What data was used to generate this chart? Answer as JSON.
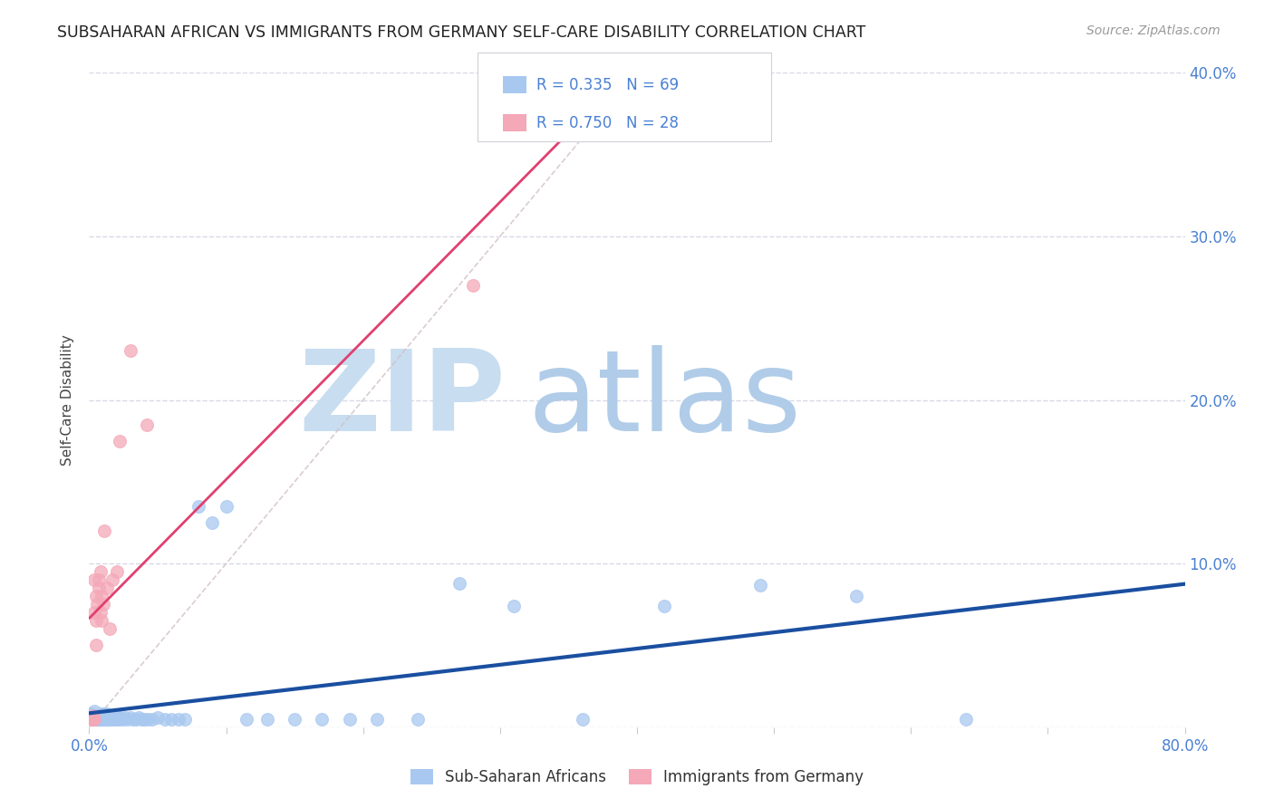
{
  "title": "SUBSAHARAN AFRICAN VS IMMIGRANTS FROM GERMANY SELF-CARE DISABILITY CORRELATION CHART",
  "source": "Source: ZipAtlas.com",
  "ylabel": "Self-Care Disability",
  "xlim": [
    0.0,
    0.8
  ],
  "ylim": [
    0.0,
    0.4
  ],
  "xticks": [
    0.0,
    0.1,
    0.2,
    0.3,
    0.4,
    0.5,
    0.6,
    0.7,
    0.8
  ],
  "yticks": [
    0.0,
    0.1,
    0.2,
    0.3,
    0.4
  ],
  "blue_R": 0.335,
  "blue_N": 69,
  "pink_R": 0.75,
  "pink_N": 28,
  "blue_color": "#a8c8f0",
  "pink_color": "#f4a8b8",
  "blue_line_color": "#1a4fa0",
  "pink_line_color": "#e04070",
  "diagonal_color": "#d0c0c8",
  "background_color": "#ffffff",
  "grid_color": "#d8d8e8",
  "watermark_zip_color": "#c8ddf0",
  "watermark_atlas_color": "#b0cce8",
  "legend_border_color": "#d0d0d8",
  "tick_color": "#4a80d4",
  "blue_scatter_x": [
    0.002,
    0.003,
    0.003,
    0.004,
    0.004,
    0.005,
    0.005,
    0.005,
    0.006,
    0.006,
    0.007,
    0.007,
    0.008,
    0.008,
    0.009,
    0.009,
    0.01,
    0.01,
    0.01,
    0.011,
    0.011,
    0.012,
    0.012,
    0.013,
    0.013,
    0.014,
    0.015,
    0.015,
    0.016,
    0.017,
    0.018,
    0.019,
    0.02,
    0.021,
    0.022,
    0.023,
    0.025,
    0.026,
    0.028,
    0.03,
    0.032,
    0.034,
    0.036,
    0.038,
    0.04,
    0.043,
    0.046,
    0.05,
    0.055,
    0.06,
    0.065,
    0.07,
    0.08,
    0.09,
    0.1,
    0.115,
    0.13,
    0.15,
    0.17,
    0.19,
    0.21,
    0.24,
    0.27,
    0.31,
    0.36,
    0.42,
    0.49,
    0.56,
    0.64
  ],
  "blue_scatter_y": [
    0.008,
    0.005,
    0.007,
    0.005,
    0.01,
    0.005,
    0.007,
    0.005,
    0.005,
    0.006,
    0.005,
    0.007,
    0.005,
    0.006,
    0.005,
    0.008,
    0.005,
    0.006,
    0.008,
    0.005,
    0.007,
    0.005,
    0.006,
    0.005,
    0.008,
    0.005,
    0.005,
    0.007,
    0.005,
    0.006,
    0.005,
    0.006,
    0.005,
    0.006,
    0.005,
    0.006,
    0.005,
    0.006,
    0.005,
    0.006,
    0.005,
    0.005,
    0.006,
    0.005,
    0.005,
    0.005,
    0.005,
    0.006,
    0.005,
    0.005,
    0.005,
    0.005,
    0.135,
    0.125,
    0.135,
    0.005,
    0.005,
    0.005,
    0.005,
    0.005,
    0.005,
    0.005,
    0.088,
    0.074,
    0.005,
    0.074,
    0.087,
    0.08,
    0.005
  ],
  "pink_scatter_x": [
    0.002,
    0.002,
    0.003,
    0.003,
    0.003,
    0.004,
    0.004,
    0.004,
    0.005,
    0.005,
    0.005,
    0.006,
    0.007,
    0.007,
    0.008,
    0.008,
    0.009,
    0.009,
    0.01,
    0.011,
    0.013,
    0.015,
    0.017,
    0.02,
    0.022,
    0.03,
    0.042,
    0.28
  ],
  "pink_scatter_y": [
    0.005,
    0.006,
    0.005,
    0.006,
    0.007,
    0.005,
    0.07,
    0.09,
    0.05,
    0.08,
    0.065,
    0.075,
    0.085,
    0.09,
    0.07,
    0.095,
    0.065,
    0.08,
    0.075,
    0.12,
    0.085,
    0.06,
    0.09,
    0.095,
    0.175,
    0.23,
    0.185,
    0.27
  ],
  "pink_line_x0": 0.0,
  "pink_line_x1": 0.6,
  "blue_line_x0": 0.0,
  "blue_line_x1": 0.8
}
